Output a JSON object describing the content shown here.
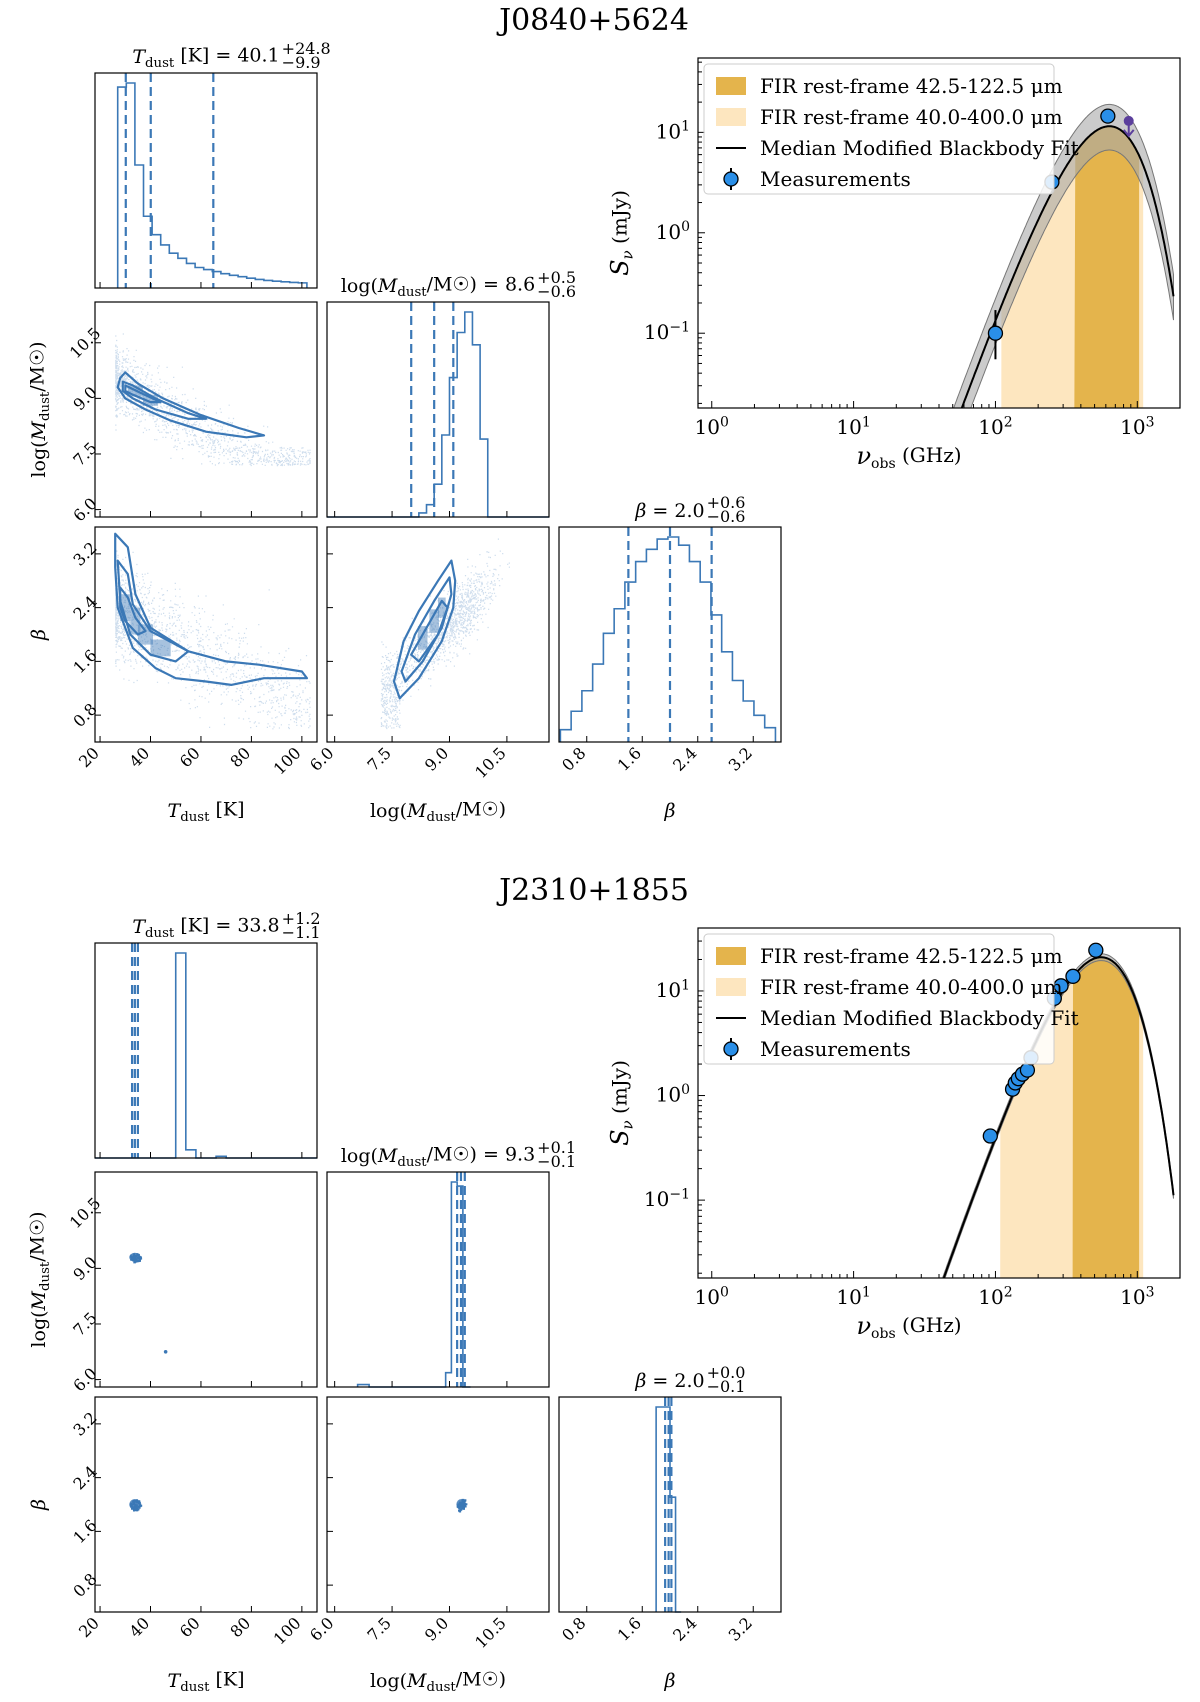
{
  "figure": {
    "colors": {
      "corner": "#3b78b6",
      "fir_narrow": "#e4b44c",
      "fir_wide": "#fde6bf",
      "measurement": "#2a8fe8",
      "upper_limit": "#5b3f9c",
      "fit_band": "#a8a8a8"
    }
  },
  "chart_data": [
    {
      "type": "corner",
      "title": "J0840+5624",
      "parameters": [
        {
          "key": "tdust",
          "label_main": "T",
          "label_sub": "dust",
          "label_tail": " [K]",
          "median": 40.1,
          "plus": 24.8,
          "minus": 9.9,
          "title": "T_dust [K] = 40.1 +24.8 −9.9",
          "title_text": "40.1",
          "plus_text": "+24.8",
          "minus_text": "−9.9",
          "range": [
            18,
            106
          ],
          "ticks": [
            20,
            40,
            60,
            80,
            100
          ],
          "tick_labels": [
            "20",
            "40",
            "60",
            "80",
            "100"
          ],
          "quantiles": [
            30.2,
            40.1,
            64.9
          ],
          "hist_counts": [
            980,
            1000,
            600,
            350,
            260,
            210,
            170,
            145,
            120,
            100,
            90,
            80,
            70,
            62,
            55,
            48,
            42,
            37,
            33,
            30,
            27,
            25
          ]
        },
        {
          "key": "mdust",
          "label_main": "log(M",
          "label_sub": "dust",
          "label_tail": "/M☉)",
          "median": 8.6,
          "plus": 0.5,
          "minus": 0.6,
          "title": "log(M_dust/M☉) = 8.6 +0.5 −0.6",
          "title_text": "8.6",
          "plus_text": "+0.5",
          "minus_text": "−0.6",
          "range": [
            5.8,
            11.6
          ],
          "ticks": [
            6.0,
            7.5,
            9.0,
            10.5
          ],
          "tick_labels": [
            "6.0",
            "7.5",
            "9.0",
            "10.5"
          ],
          "quantiles": [
            8.0,
            8.6,
            9.1
          ],
          "hist_counts": [
            0,
            0,
            0,
            0,
            0,
            0,
            0,
            0,
            0,
            0,
            0,
            0,
            20,
            60,
            160,
            400,
            680,
            900,
            1000,
            840,
            380,
            0,
            0,
            0,
            0,
            0,
            0,
            0,
            0
          ]
        },
        {
          "key": "beta",
          "label_main": "β",
          "label_sub": "",
          "label_tail": "",
          "median": 2.0,
          "plus": 0.6,
          "minus": 0.6,
          "title": "β = 2.0 +0.6 −0.6",
          "title_text": "2.0",
          "plus_text": "+0.6",
          "minus_text": "−0.6",
          "range": [
            0.4,
            3.6
          ],
          "ticks": [
            0.8,
            1.6,
            2.4,
            3.2
          ],
          "tick_labels": [
            "0.8",
            "1.6",
            "2.4",
            "3.2"
          ],
          "quantiles": [
            1.4,
            2.0,
            2.6
          ],
          "hist_counts": [
            60,
            150,
            250,
            380,
            530,
            650,
            780,
            880,
            940,
            990,
            1000,
            960,
            880,
            780,
            620,
            440,
            300,
            200,
            130,
            70
          ]
        }
      ],
      "sed": {
        "xlabel": "ν_obs (GHz)",
        "xlabel_main": "ν",
        "xlabel_sub": "obs",
        "xlabel_tail": " (GHz)",
        "ylabel": "S_ν (mJy)",
        "ylabel_main": "S",
        "ylabel_sub": "ν",
        "ylabel_tail": " (mJy)",
        "xlim": [
          0.8,
          2000
        ],
        "ylim": [
          0.018,
          55
        ],
        "xticks": [
          1,
          10,
          100,
          1000
        ],
        "xtick_base": "10",
        "xtick_exps": [
          "0",
          "1",
          "2",
          "3"
        ],
        "yticks": [
          0.1,
          1,
          10
        ],
        "ytick_base": "10",
        "ytick_exps": [
          "−1",
          "0",
          "1"
        ],
        "peak_nu": 640,
        "peak_flux": 11.5,
        "beta": 2.0,
        "band_upper": 1.65,
        "band_lower": 0.58,
        "fir_wide_range_ghz": [
          110,
          1100
        ],
        "fir_narrow_range_ghz": [
          360,
          1030
        ],
        "measurements": [
          {
            "nu": 100,
            "flux": 0.1,
            "err_low": 0.055,
            "err_high": 0.17
          },
          {
            "nu": 250,
            "flux": 3.2,
            "err_low": 2.8,
            "err_high": 3.6
          },
          {
            "nu": 620,
            "flux": 14.5,
            "err_low": 14.5,
            "err_high": 14.5
          }
        ],
        "upper_limits": [
          {
            "nu": 870,
            "flux": 13.0
          }
        ],
        "legend": [
          {
            "label": "FIR rest-frame 42.5-122.5 μm",
            "kind": "fir_narrow"
          },
          {
            "label": "FIR rest-frame 40.0-400.0 μm",
            "kind": "fir_wide"
          },
          {
            "label": "Median Modified Blackbody Fit",
            "kind": "line"
          },
          {
            "label": "Measurements",
            "kind": "marker"
          }
        ]
      }
    },
    {
      "type": "corner",
      "title": "J2310+1855",
      "parameters": [
        {
          "key": "tdust",
          "label_main": "T",
          "label_sub": "dust",
          "label_tail": " [K]",
          "median": 33.8,
          "plus": 1.2,
          "minus": 1.1,
          "title": "T_dust [K] = 33.8 +1.2 −1.1",
          "title_text": "33.8",
          "plus_text": "+1.2",
          "minus_text": "−1.1",
          "range": [
            18,
            106
          ],
          "ticks": [
            20,
            40,
            60,
            80,
            100
          ],
          "tick_labels": [
            "20",
            "40",
            "60",
            "80",
            "100"
          ],
          "quantiles": [
            32.7,
            33.8,
            35.0
          ],
          "hist_counts": [
            0,
            0,
            0,
            0,
            0,
            0,
            0,
            0,
            1000,
            40,
            0,
            0,
            8,
            0,
            0,
            0,
            0,
            0,
            0,
            0,
            0,
            0
          ]
        },
        {
          "key": "mdust",
          "label_main": "log(M",
          "label_sub": "dust",
          "label_tail": "/M☉)",
          "median": 9.3,
          "plus": 0.1,
          "minus": 0.1,
          "title": "log(M_dust/M☉) = 9.3 +0.1 −0.1",
          "title_text": "9.3",
          "plus_text": "+0.1",
          "minus_text": "−0.1",
          "range": [
            5.8,
            11.6
          ],
          "ticks": [
            6.0,
            7.5,
            9.0,
            10.5
          ],
          "tick_labels": [
            "6.0",
            "7.5",
            "9.0",
            "10.5"
          ],
          "quantiles": [
            9.2,
            9.3,
            9.4
          ],
          "hist_counts": [
            0,
            0,
            0,
            0,
            0,
            0,
            0,
            0,
            0,
            0,
            0,
            0,
            0,
            0,
            0,
            0,
            0,
            0,
            0,
            0,
            0,
            0,
            0,
            0,
            0,
            0,
            0,
            0,
            0
          ]
        },
        {
          "key": "beta",
          "label_main": "β",
          "label_sub": "",
          "label_tail": "",
          "median": 2.0,
          "plus": 0.0,
          "minus": 0.1,
          "title": "β = 2.0 +0.0 −0.1",
          "title_text": "2.0",
          "plus_text": "+0.0",
          "minus_text": "−0.1",
          "range": [
            0.4,
            3.6
          ],
          "ticks": [
            0.8,
            1.6,
            2.4,
            3.2
          ],
          "tick_labels": [
            "0.8",
            "1.6",
            "2.4",
            "3.2"
          ],
          "quantiles": [
            1.93,
            1.98,
            2.02
          ],
          "hist_counts": [
            0,
            0,
            0,
            0,
            0,
            0,
            0,
            0,
            0,
            0,
            0,
            0,
            0,
            0,
            0,
            0,
            0,
            0,
            0,
            0
          ]
        }
      ],
      "mdust_hist_override": {
        "edges": [
          6.6,
          6.9,
          8.9,
          9.05,
          9.2,
          9.35,
          9.55
        ],
        "counts": [
          12,
          0,
          70,
          1000,
          980,
          0
        ]
      },
      "beta_hist_override": {
        "edges": [
          1.8,
          1.92,
          2.0,
          2.08,
          2.16
        ],
        "counts": [
          1000,
          1000,
          560,
          0
        ]
      },
      "sed": {
        "xlabel": "ν_obs (GHz)",
        "xlabel_main": "ν",
        "xlabel_sub": "obs",
        "xlabel_tail": " (GHz)",
        "ylabel": "S_ν (mJy)",
        "ylabel_main": "S",
        "ylabel_sub": "ν",
        "ylabel_tail": " (mJy)",
        "xlim": [
          0.8,
          2000
        ],
        "ylim": [
          0.018,
          40
        ],
        "xticks": [
          1,
          10,
          100,
          1000
        ],
        "xtick_base": "10",
        "xtick_exps": [
          "0",
          "1",
          "2",
          "3"
        ],
        "yticks": [
          0.1,
          1,
          10
        ],
        "ytick_base": "10",
        "ytick_exps": [
          "−1",
          "0",
          "1"
        ],
        "peak_nu": 560,
        "peak_flux": 21.0,
        "beta": 2.0,
        "band_upper": 1.08,
        "band_lower": 0.93,
        "fir_wide_range_ghz": [
          108,
          1100
        ],
        "fir_narrow_range_ghz": [
          350,
          1030
        ],
        "measurements": [
          {
            "nu": 92,
            "flux": 0.41,
            "err_low": 0.41,
            "err_high": 0.41
          },
          {
            "nu": 132,
            "flux": 1.15,
            "err_low": 1.15,
            "err_high": 1.15
          },
          {
            "nu": 138,
            "flux": 1.32,
            "err_low": 1.32,
            "err_high": 1.32
          },
          {
            "nu": 145,
            "flux": 1.45,
            "err_low": 1.45,
            "err_high": 1.45
          },
          {
            "nu": 155,
            "flux": 1.6,
            "err_low": 1.6,
            "err_high": 1.6
          },
          {
            "nu": 168,
            "flux": 1.75,
            "err_low": 1.75,
            "err_high": 1.75
          },
          {
            "nu": 178,
            "flux": 2.3,
            "err_low": 2.3,
            "err_high": 2.3
          },
          {
            "nu": 260,
            "flux": 8.5,
            "err_low": 8.5,
            "err_high": 8.5
          },
          {
            "nu": 290,
            "flux": 11.2,
            "err_low": 11.2,
            "err_high": 11.2
          },
          {
            "nu": 352,
            "flux": 13.8,
            "err_low": 13.8,
            "err_high": 13.8
          },
          {
            "nu": 510,
            "flux": 24.5,
            "err_low": 24.5,
            "err_high": 24.5
          }
        ],
        "upper_limits": [],
        "legend": [
          {
            "label": "FIR rest-frame 42.5-122.5 μm",
            "kind": "fir_narrow"
          },
          {
            "label": "FIR rest-frame 40.0-400.0 μm",
            "kind": "fir_wide"
          },
          {
            "label": "Median Modified Blackbody Fit",
            "kind": "line"
          },
          {
            "label": "Measurements",
            "kind": "marker"
          }
        ]
      }
    }
  ]
}
